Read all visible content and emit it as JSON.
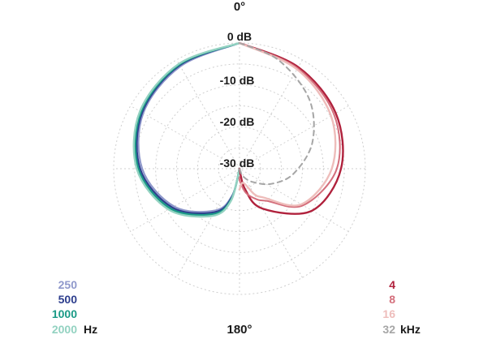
{
  "chart_data": {
    "type": "polar",
    "top_angle_label": "0°",
    "bottom_angle_label": "180°",
    "ring_labels": [
      "0 dB",
      "-10 dB",
      "-20 dB",
      "-30 dB"
    ],
    "r_range_db": [
      -30,
      0
    ],
    "grid": true,
    "angular_grid_step_deg": 30,
    "radial_grid_step_db": 5,
    "legend_left": {
      "placement": "bottom-left",
      "unit": "Hz",
      "items": [
        {
          "label": "250",
          "color": "#8f98cb"
        },
        {
          "label": "500",
          "color": "#2d3e8d"
        },
        {
          "label": "1000",
          "color": "#1a9a86"
        },
        {
          "label": "2000",
          "color": "#93d2c1"
        }
      ]
    },
    "legend_right": {
      "placement": "bottom-right",
      "unit": "kHz",
      "items": [
        {
          "label": "4",
          "color": "#b0213c"
        },
        {
          "label": "8",
          "color": "#d46f7c"
        },
        {
          "label": "16",
          "color": "#eebdbb"
        },
        {
          "label": "32",
          "color": "#a6a6a6"
        }
      ]
    },
    "series": [
      {
        "name": "250",
        "side": "left",
        "color": "#8f98cb",
        "width": 2.2,
        "points": [
          [
            0,
            0
          ],
          [
            30,
            -1.8
          ],
          [
            60,
            -3.5
          ],
          [
            90,
            -6.8
          ],
          [
            120,
            -12
          ],
          [
            150,
            -18.5
          ],
          [
            165,
            -23.5
          ],
          [
            180,
            -30
          ]
        ]
      },
      {
        "name": "500",
        "side": "left",
        "color": "#2d3e8d",
        "width": 2.2,
        "points": [
          [
            0,
            0
          ],
          [
            30,
            -1.5
          ],
          [
            60,
            -3.2
          ],
          [
            90,
            -6.3
          ],
          [
            120,
            -11.5
          ],
          [
            150,
            -18
          ],
          [
            165,
            -23
          ],
          [
            180,
            -30
          ]
        ]
      },
      {
        "name": "1000",
        "side": "left",
        "color": "#1a9a86",
        "width": 2.4,
        "points": [
          [
            0,
            0
          ],
          [
            30,
            -1.3
          ],
          [
            60,
            -2.9
          ],
          [
            90,
            -5.9
          ],
          [
            120,
            -11
          ],
          [
            150,
            -17.5
          ],
          [
            165,
            -22.5
          ],
          [
            180,
            -30
          ]
        ]
      },
      {
        "name": "2000",
        "side": "left",
        "color": "#93d2c1",
        "width": 2.4,
        "points": [
          [
            0,
            0
          ],
          [
            30,
            -1.1
          ],
          [
            60,
            -2.6
          ],
          [
            90,
            -5.5
          ],
          [
            120,
            -10.5
          ],
          [
            150,
            -17
          ],
          [
            165,
            -22
          ],
          [
            180,
            -30
          ]
        ]
      },
      {
        "name": "4",
        "side": "right",
        "color": "#b0213c",
        "width": 2.4,
        "points": [
          [
            0,
            0
          ],
          [
            30,
            -2
          ],
          [
            60,
            -3.5
          ],
          [
            90,
            -5.8
          ],
          [
            120,
            -10
          ],
          [
            150,
            -19
          ],
          [
            165,
            -25
          ],
          [
            180,
            -30
          ]
        ]
      },
      {
        "name": "8",
        "side": "right",
        "color": "#d46f7c",
        "width": 2.0,
        "points": [
          [
            0,
            0
          ],
          [
            30,
            -2.3
          ],
          [
            60,
            -4
          ],
          [
            90,
            -6.8
          ],
          [
            120,
            -12.5
          ],
          [
            140,
            -20
          ],
          [
            150,
            -21.5
          ],
          [
            165,
            -24
          ],
          [
            178,
            -27
          ],
          [
            180,
            -28
          ]
        ]
      },
      {
        "name": "16",
        "side": "right",
        "color": "#eebdbb",
        "width": 2.4,
        "points": [
          [
            0,
            0
          ],
          [
            30,
            -2.6
          ],
          [
            60,
            -4.8
          ],
          [
            90,
            -8
          ],
          [
            120,
            -13
          ],
          [
            140,
            -21
          ],
          [
            150,
            -23
          ],
          [
            165,
            -26.5
          ],
          [
            180,
            -25
          ]
        ]
      },
      {
        "name": "32",
        "side": "right",
        "color": "#a6a6a6",
        "width": 2.0,
        "dashed": true,
        "points": [
          [
            0,
            0
          ],
          [
            20,
            -2.5
          ],
          [
            45,
            -6.5
          ],
          [
            70,
            -11.5
          ],
          [
            95,
            -17
          ],
          [
            115,
            -21.5
          ],
          [
            135,
            -25.5
          ],
          [
            155,
            -28
          ],
          [
            180,
            -30
          ]
        ]
      }
    ]
  }
}
